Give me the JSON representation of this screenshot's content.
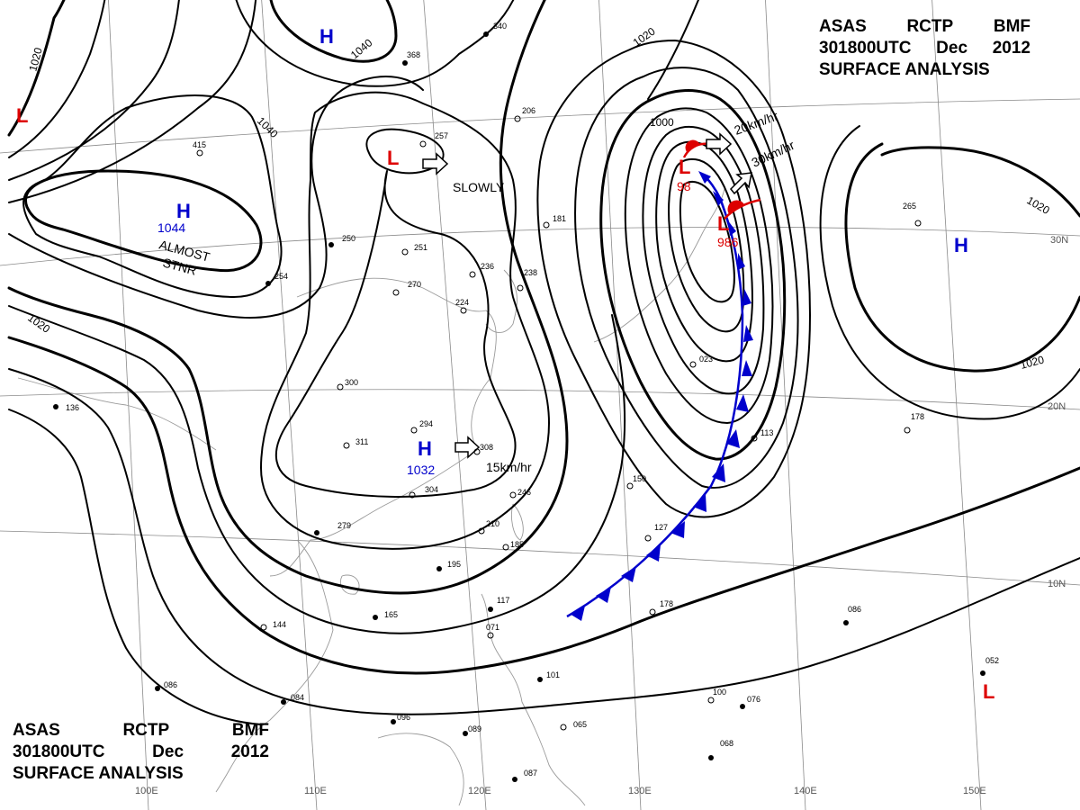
{
  "header": {
    "line1": [
      "ASAS",
      "RCTP",
      "BMF"
    ],
    "line2": [
      "301800UTC",
      "Dec",
      "2012"
    ],
    "line3": "SURFACE ANALYSIS"
  },
  "pressure_centers": [
    {
      "type": "H",
      "value": "1044",
      "color": "#0000cc"
    },
    {
      "type": "H",
      "value": "",
      "color": "#0000cc"
    },
    {
      "type": "H",
      "value": "1032",
      "color": "#0000cc"
    },
    {
      "type": "H",
      "value": "",
      "color": "#0000cc"
    },
    {
      "type": "L",
      "value": "",
      "color": "#dd0000"
    },
    {
      "type": "L",
      "value": "",
      "color": "#dd0000"
    },
    {
      "type": "L",
      "value": "98",
      "color": "#dd0000"
    },
    {
      "type": "L",
      "value": "986",
      "color": "#dd0000"
    },
    {
      "type": "L",
      "value": "",
      "color": "#dd0000"
    }
  ],
  "isobar_labels": [
    "1020",
    "1040",
    "1040",
    "1020",
    "1020",
    "1000",
    "1020",
    "1020"
  ],
  "motion_labels": [
    "SLOWLY",
    "20km/hr",
    "30km/hr",
    "15km/hr"
  ],
  "stationary_note": [
    "ALMOST",
    "STNR"
  ],
  "longitude_labels": [
    "100E",
    "110E",
    "120E",
    "130E",
    "140E",
    "150E"
  ],
  "latitude_labels": [
    "30N",
    "20N",
    "10N"
  ],
  "station_values": [
    "415",
    "340",
    "368",
    "206",
    "257",
    "224",
    "236",
    "238",
    "181",
    "250",
    "251",
    "270",
    "300",
    "294",
    "311",
    "304",
    "308",
    "246",
    "210",
    "195",
    "185",
    "165",
    "144",
    "136",
    "279",
    "254",
    "117",
    "071",
    "101",
    "096",
    "089",
    "065",
    "086",
    "084",
    "087",
    "100",
    "076",
    "068",
    "178",
    "127",
    "113",
    "150",
    "086",
    "052",
    "265",
    "178",
    "023"
  ],
  "colors": {
    "isobar": "#000000",
    "high": "#0000cc",
    "low": "#dd0000",
    "cold_front": "#0000cc",
    "warm_front": "#dd0000",
    "grid": "#777777"
  }
}
